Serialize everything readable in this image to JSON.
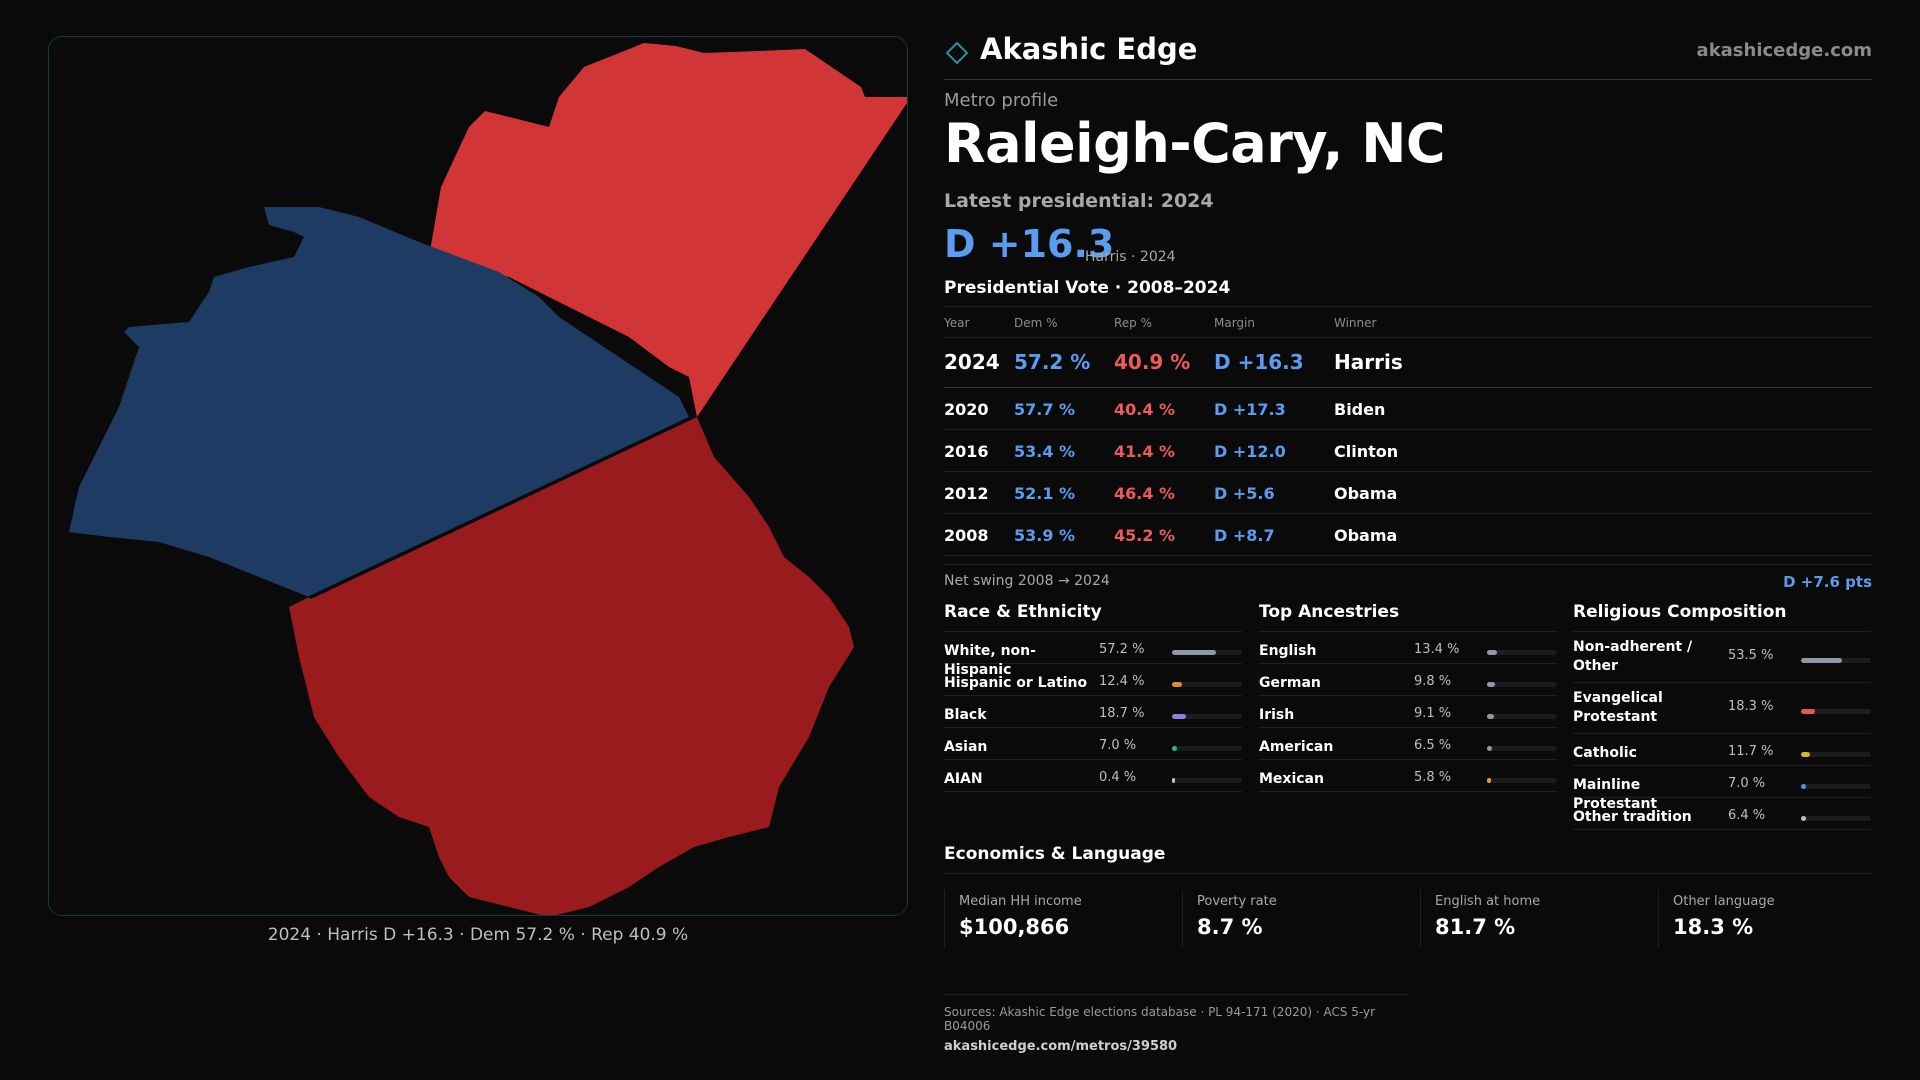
{
  "brand": {
    "name": "Akashic Edge",
    "url": "akashicedge.com"
  },
  "map": {
    "caption": "2024 · Harris D +16.3 · Dem 57.2 % · Rep 40.9 %",
    "colors": {
      "dem_county": "#1e3b63",
      "rep_light": "#d23535",
      "rep_dark": "#9a1b1e"
    }
  },
  "profile": {
    "eyebrow": "Metro profile",
    "title": "Raleigh-Cary, NC",
    "latest_label": "Latest presidential: 2024",
    "margin": "D +16.3",
    "margin_sub": "Harris · 2024"
  },
  "vote": {
    "heading": "Presidential Vote · 2008–2024",
    "columns": [
      "Year",
      "Dem %",
      "Rep %",
      "Margin",
      "Winner"
    ],
    "rows": [
      {
        "year": "2024",
        "dem": "57.2 %",
        "rep": "40.9 %",
        "margin": "D +16.3",
        "winner": "Harris"
      },
      {
        "year": "2020",
        "dem": "57.7 %",
        "rep": "40.4 %",
        "margin": "D +17.3",
        "winner": "Biden"
      },
      {
        "year": "2016",
        "dem": "53.4 %",
        "rep": "41.4 %",
        "margin": "D +12.0",
        "winner": "Clinton"
      },
      {
        "year": "2012",
        "dem": "52.1 %",
        "rep": "46.4 %",
        "margin": "D +5.6",
        "winner": "Obama"
      },
      {
        "year": "2008",
        "dem": "53.9 %",
        "rep": "45.2 %",
        "margin": "D +8.7",
        "winner": "Obama"
      }
    ],
    "swing_label": "Net swing 2008 → 2024",
    "swing_value": "D +7.6 pts"
  },
  "race": {
    "title": "Race & Ethnicity",
    "items": [
      {
        "name": "White, non-Hispanic",
        "pct": "57.2 %",
        "value": 57.2,
        "color": "#8f96a6"
      },
      {
        "name": "Hispanic or Latino",
        "pct": "12.4 %",
        "value": 12.4,
        "color": "#e08a2c"
      },
      {
        "name": "Black",
        "pct": "18.7 %",
        "value": 18.7,
        "color": "#8b7ee0"
      },
      {
        "name": "Asian",
        "pct": "7.0 %",
        "value": 7.0,
        "color": "#2cb886"
      },
      {
        "name": "AIAN",
        "pct": "0.4 %",
        "value": 0.4,
        "color": "#c0c0c0"
      }
    ]
  },
  "ancestry": {
    "title": "Top Ancestries",
    "items": [
      {
        "name": "English",
        "pct": "13.4 %",
        "value": 13.4,
        "color": "#8f96a6"
      },
      {
        "name": "German",
        "pct": "9.8 %",
        "value": 9.8,
        "color": "#8f96a6"
      },
      {
        "name": "Irish",
        "pct": "9.1 %",
        "value": 9.1,
        "color": "#8f96a6"
      },
      {
        "name": "American",
        "pct": "6.5 %",
        "value": 6.5,
        "color": "#8f96a6"
      },
      {
        "name": "Mexican",
        "pct": "5.8 %",
        "value": 5.8,
        "color": "#e0a32c"
      }
    ]
  },
  "religion": {
    "title": "Religious Composition",
    "items": [
      {
        "name": "Non-adherent / Other",
        "pct": "53.5 %",
        "value": 53.5,
        "color": "#8f96a6",
        "tall": true
      },
      {
        "name": "Evangelical Protestant",
        "pct": "18.3 %",
        "value": 18.3,
        "color": "#e45a5a",
        "tall": true
      },
      {
        "name": "Catholic",
        "pct": "11.7 %",
        "value": 11.7,
        "color": "#e0b02c",
        "tall": false
      },
      {
        "name": "Mainline Protestant",
        "pct": "7.0 %",
        "value": 7.0,
        "color": "#5a8ef0",
        "tall": false
      },
      {
        "name": "Other tradition",
        "pct": "6.4 %",
        "value": 6.4,
        "color": "#c0c0c0",
        "tall": false
      }
    ]
  },
  "economics": {
    "title": "Economics & Language",
    "stats": [
      {
        "label": "Median HH income",
        "value": "$100,866"
      },
      {
        "label": "Poverty rate",
        "value": "8.7 %"
      },
      {
        "label": "English at home",
        "value": "81.7 %"
      },
      {
        "label": "Other language",
        "value": "18.3 %"
      }
    ]
  },
  "footer": {
    "sources": "Sources: Akashic Edge elections database · PL 94-171 (2020) · ACS 5-yr B04006",
    "url": "akashicedge.com/metros/39580"
  }
}
